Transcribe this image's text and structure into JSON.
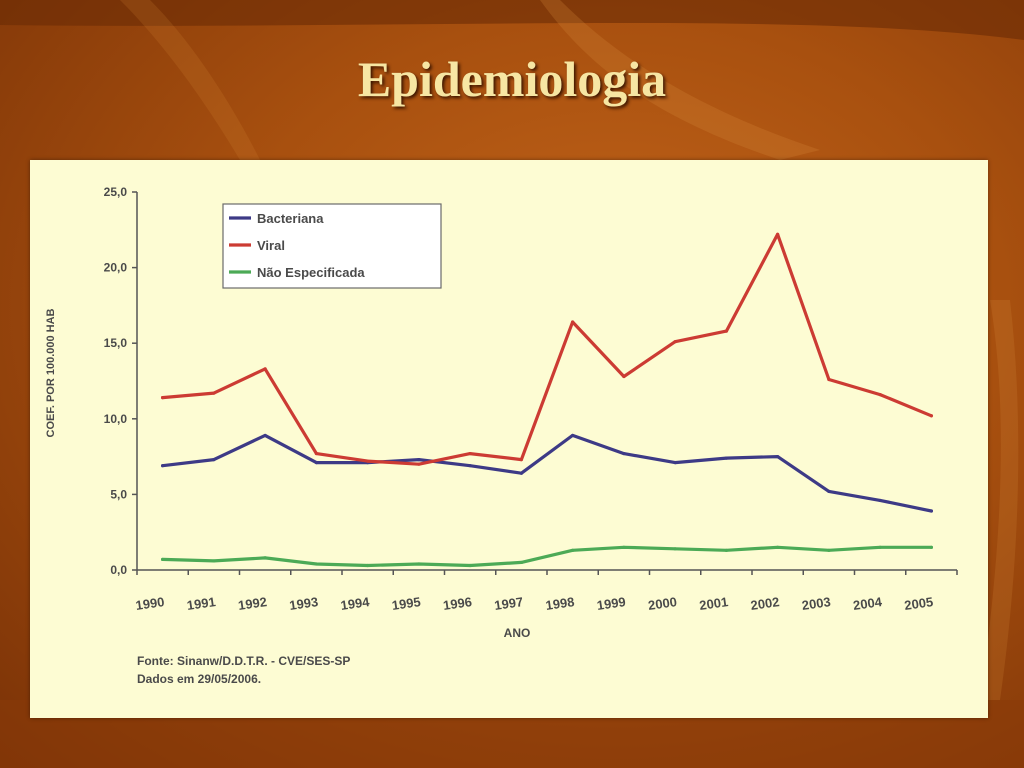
{
  "slide": {
    "title": "Epidemiologia"
  },
  "chart_data": {
    "type": "line",
    "x": [
      "1990",
      "1991",
      "1992",
      "1993",
      "1994",
      "1995",
      "1996",
      "1997",
      "1998",
      "1999",
      "2000",
      "2001",
      "2002",
      "2003",
      "2004",
      "2005"
    ],
    "ylim": [
      0,
      25
    ],
    "yticks": [
      "0,0",
      "5,0",
      "10,0",
      "15,0",
      "20,0",
      "25,0"
    ],
    "xlabel": "ANO",
    "ylabel": "COEF. POR 100.000 HAB",
    "legend_position": "top-left",
    "grid": false,
    "series": [
      {
        "name": "Bacteriana",
        "color": "#3d3a86",
        "values": [
          6.9,
          7.3,
          8.9,
          7.1,
          7.1,
          7.3,
          6.9,
          6.4,
          8.9,
          7.7,
          7.1,
          7.4,
          7.5,
          5.2,
          4.6,
          3.9
        ]
      },
      {
        "name": "Viral",
        "color": "#cc3b33",
        "values": [
          11.4,
          11.7,
          13.3,
          7.7,
          7.2,
          7.0,
          7.7,
          7.3,
          16.4,
          12.8,
          15.1,
          15.8,
          22.2,
          12.6,
          11.6,
          10.2
        ]
      },
      {
        "name": "Não Especificada",
        "color": "#4caa56",
        "values": [
          0.7,
          0.6,
          0.8,
          0.4,
          0.3,
          0.4,
          0.3,
          0.5,
          1.3,
          1.5,
          1.4,
          1.3,
          1.5,
          1.3,
          1.5,
          1.5
        ]
      }
    ],
    "notes": [
      "Fonte: Sinanw/D.D.T.R. - CVE/SES-SP",
      "Dados em 29/05/2006."
    ]
  }
}
